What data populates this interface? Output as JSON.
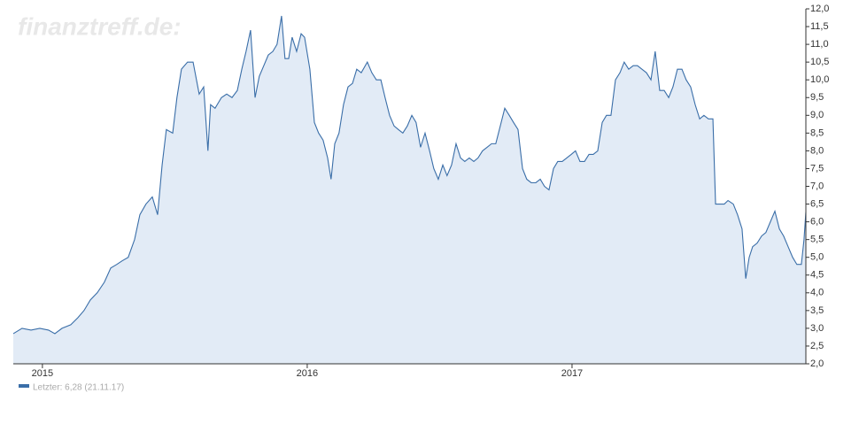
{
  "chart_data": {
    "type": "area",
    "watermark": "finanztreff.de:",
    "xlim": [
      2014.89,
      2017.883
    ],
    "xticks": [
      2015,
      2016,
      2017
    ],
    "ylim": [
      2,
      12
    ],
    "yticks": [
      {
        "value": 2,
        "label": "2,0"
      },
      {
        "value": 2.5,
        "label": "2,5"
      },
      {
        "value": 3,
        "label": "3,0"
      },
      {
        "value": 3.5,
        "label": "3,5"
      },
      {
        "value": 4,
        "label": "4,0"
      },
      {
        "value": 4.5,
        "label": "4,5"
      },
      {
        "value": 5,
        "label": "5,0"
      },
      {
        "value": 5.5,
        "label": "5,5"
      },
      {
        "value": 6,
        "label": "6,0"
      },
      {
        "value": 6.5,
        "label": "6,5"
      },
      {
        "value": 7,
        "label": "7,0"
      },
      {
        "value": 7.5,
        "label": "7,5"
      },
      {
        "value": 8,
        "label": "8,0"
      },
      {
        "value": 8.5,
        "label": "8,5"
      },
      {
        "value": 9,
        "label": "9,0"
      },
      {
        "value": 9.5,
        "label": "9,5"
      },
      {
        "value": 10,
        "label": "10,0"
      },
      {
        "value": 10.5,
        "label": "10,5"
      },
      {
        "value": 11,
        "label": "11,0"
      },
      {
        "value": 11.5,
        "label": "11,5"
      },
      {
        "value": 12,
        "label": "12,0"
      }
    ],
    "x": [
      2014.89,
      2014.923,
      2014.957,
      2014.99,
      2015.023,
      2015.047,
      2015.074,
      2015.107,
      2015.134,
      2015.157,
      2015.181,
      2015.207,
      2015.234,
      2015.258,
      2015.281,
      2015.301,
      2015.324,
      2015.348,
      2015.368,
      2015.391,
      2015.415,
      2015.435,
      2015.452,
      2015.468,
      2015.492,
      2015.508,
      2015.525,
      2015.548,
      2015.569,
      2015.592,
      2015.609,
      2015.625,
      2015.635,
      2015.652,
      2015.676,
      2015.696,
      2015.716,
      2015.736,
      2015.753,
      2015.769,
      2015.786,
      2015.803,
      2015.819,
      2015.836,
      2015.853,
      2015.87,
      2015.886,
      2015.903,
      2015.916,
      2015.93,
      2015.943,
      2015.96,
      2015.977,
      2015.99,
      2016.01,
      2016.027,
      2016.043,
      2016.06,
      2016.077,
      2016.09,
      2016.104,
      2016.12,
      2016.137,
      2016.154,
      2016.171,
      2016.187,
      2016.204,
      2016.227,
      2016.244,
      2016.261,
      2016.278,
      2016.294,
      2016.311,
      2016.328,
      2016.344,
      2016.361,
      2016.378,
      2016.395,
      2016.411,
      2016.428,
      2016.445,
      2016.462,
      2016.478,
      2016.495,
      2016.512,
      2016.528,
      2016.545,
      2016.562,
      2016.579,
      2016.595,
      2016.612,
      2016.629,
      2016.645,
      2016.662,
      2016.679,
      2016.696,
      2016.712,
      2016.729,
      2016.746,
      2016.763,
      2016.779,
      2016.796,
      2016.813,
      2016.829,
      2016.846,
      2016.863,
      2016.88,
      2016.896,
      2016.913,
      2016.93,
      2016.946,
      2016.963,
      2016.98,
      2016.997,
      2017.013,
      2017.03,
      2017.047,
      2017.064,
      2017.08,
      2017.097,
      2017.114,
      2017.13,
      2017.147,
      2017.164,
      2017.181,
      2017.197,
      2017.214,
      2017.231,
      2017.247,
      2017.264,
      2017.281,
      2017.298,
      2017.314,
      2017.331,
      2017.348,
      2017.365,
      2017.381,
      2017.398,
      2017.415,
      2017.431,
      2017.448,
      2017.465,
      2017.482,
      2017.498,
      2017.515,
      2017.532,
      2017.542,
      2017.555,
      2017.575,
      2017.589,
      2017.609,
      2017.625,
      2017.642,
      2017.656,
      2017.669,
      2017.682,
      2017.699,
      2017.716,
      2017.732,
      2017.749,
      2017.766,
      2017.783,
      2017.799,
      2017.816,
      2017.833,
      2017.849,
      2017.866,
      2017.876,
      2017.883
    ],
    "series": [
      {
        "name": "Letzter: 6,28 (21.11.17)",
        "color": "#3a6ea8",
        "fill": "#e2ebf6",
        "values": [
          2.85,
          3.0,
          2.95,
          3.0,
          2.95,
          2.85,
          3.0,
          3.1,
          3.3,
          3.5,
          3.8,
          4.0,
          4.3,
          4.7,
          4.8,
          4.9,
          5.0,
          5.5,
          6.2,
          6.5,
          6.7,
          6.2,
          7.6,
          8.6,
          8.5,
          9.5,
          10.3,
          10.5,
          10.5,
          9.6,
          9.8,
          8.0,
          9.3,
          9.2,
          9.5,
          9.6,
          9.5,
          9.7,
          10.3,
          10.8,
          11.4,
          9.5,
          10.1,
          10.4,
          10.7,
          10.8,
          11.0,
          11.8,
          10.6,
          10.6,
          11.2,
          10.8,
          11.3,
          11.2,
          10.3,
          8.8,
          8.5,
          8.3,
          7.8,
          7.2,
          8.2,
          8.5,
          9.3,
          9.8,
          9.9,
          10.3,
          10.2,
          10.5,
          10.2,
          10.0,
          10.0,
          9.5,
          9.0,
          8.7,
          8.6,
          8.5,
          8.7,
          9.0,
          8.8,
          8.1,
          8.5,
          8.0,
          7.5,
          7.2,
          7.6,
          7.3,
          7.6,
          8.2,
          7.8,
          7.7,
          7.8,
          7.7,
          7.8,
          8.0,
          8.1,
          8.2,
          8.2,
          8.7,
          9.2,
          9.0,
          8.8,
          8.6,
          7.5,
          7.2,
          7.1,
          7.1,
          7.2,
          7.0,
          6.9,
          7.5,
          7.7,
          7.7,
          7.8,
          7.9,
          8.0,
          7.7,
          7.7,
          7.9,
          7.9,
          8.0,
          8.8,
          9.0,
          9.0,
          10.0,
          10.2,
          10.5,
          10.3,
          10.4,
          10.4,
          10.3,
          10.2,
          10.0,
          10.8,
          9.7,
          9.7,
          9.5,
          9.8,
          10.3,
          10.3,
          10.0,
          9.8,
          9.3,
          8.9,
          9.0,
          8.9,
          8.9,
          6.5,
          6.5,
          6.5,
          6.6,
          6.5,
          6.2,
          5.8,
          4.4,
          5.0,
          5.3,
          5.4,
          5.6,
          5.7,
          6.0,
          6.3,
          5.8,
          5.6,
          5.3,
          5.0,
          4.8,
          4.8,
          5.5,
          6.28
        ]
      }
    ]
  }
}
